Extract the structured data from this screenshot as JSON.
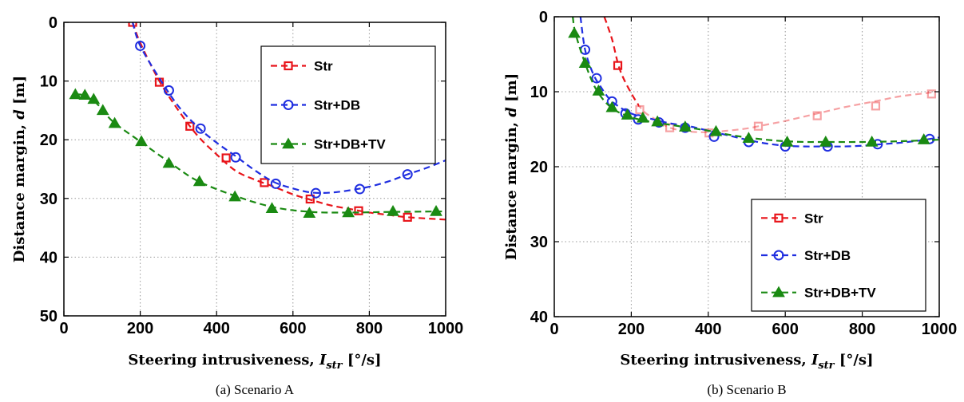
{
  "colors": {
    "Str": "#e8141a",
    "Str+DB": "#1f2ee0",
    "Str+DB+TV": "#1a8a12",
    "grid": "#9a9a9a"
  },
  "chart_data": [
    {
      "type": "line",
      "caption": "(a) Scenario A",
      "xlabel_main": "Steering intrusiveness, ",
      "xlabel_sym": "I",
      "xlabel_sub": "str",
      "xlabel_unit": " [°/s]",
      "ylabel_main": "Distance margin, ",
      "ylabel_sym": "d",
      "ylabel_unit": " [m]",
      "xlim": [
        0,
        1000
      ],
      "ylim": [
        0,
        50
      ],
      "y_inverted": true,
      "xticks": [
        0,
        200,
        400,
        600,
        800,
        1000
      ],
      "yticks": [
        0,
        10,
        20,
        30,
        40,
        50
      ],
      "grid": true,
      "legend_position": "top-right",
      "series": [
        {
          "name": "Str",
          "marker": "square",
          "dash": true,
          "curve": [
            [
              180,
              0
            ],
            [
              200,
              3.5
            ],
            [
              250,
              10
            ],
            [
              300,
              15
            ],
            [
              350,
              19.3
            ],
            [
              400,
              22.5
            ],
            [
              450,
              25.3
            ],
            [
              500,
              26.8
            ],
            [
              550,
              28
            ],
            [
              600,
              29.3
            ],
            [
              650,
              30.3
            ],
            [
              700,
              31.2
            ],
            [
              750,
              31.8
            ],
            [
              800,
              32.4
            ],
            [
              850,
              32.8
            ],
            [
              900,
              33.2
            ],
            [
              1000,
              33.6
            ]
          ],
          "markers": [
            [
              180,
              0
            ],
            [
              250,
              10.2
            ],
            [
              330,
              17.7
            ],
            [
              425,
              23.1
            ],
            [
              525,
              27.3
            ],
            [
              645,
              30.1
            ],
            [
              772,
              32.1
            ],
            [
              900,
              33.2
            ]
          ]
        },
        {
          "name": "Str+DB",
          "marker": "circle",
          "dash": true,
          "curve": [
            [
              180,
              0
            ],
            [
              200,
              4
            ],
            [
              250,
              9.5
            ],
            [
              300,
              14.3
            ],
            [
              350,
              17.8
            ],
            [
              400,
              20.5
            ],
            [
              450,
              22.8
            ],
            [
              500,
              25.2
            ],
            [
              550,
              27.2
            ],
            [
              600,
              28.3
            ],
            [
              650,
              29
            ],
            [
              700,
              29
            ],
            [
              750,
              28.6
            ],
            [
              800,
              28
            ],
            [
              850,
              27.1
            ],
            [
              900,
              25.9
            ],
            [
              950,
              24.8
            ],
            [
              1000,
              23.5
            ]
          ],
          "markers": [
            [
              200,
              4
            ],
            [
              275,
              11.6
            ],
            [
              358,
              18.1
            ],
            [
              450,
              23
            ],
            [
              555,
              27.5
            ],
            [
              660,
              29.1
            ],
            [
              775,
              28.4
            ],
            [
              900,
              25.9
            ]
          ]
        },
        {
          "name": "Str+DB+TV",
          "marker": "triangle",
          "dash": true,
          "curve": [
            [
              30,
              12.3
            ],
            [
              50,
              12.4
            ],
            [
              80,
              13.5
            ],
            [
              100,
              14.8
            ],
            [
              130,
              17
            ],
            [
              200,
              20.3
            ],
            [
              280,
              24
            ],
            [
              350,
              27
            ],
            [
              450,
              29.6
            ],
            [
              550,
              31.5
            ],
            [
              650,
              32.3
            ],
            [
              750,
              32.4
            ],
            [
              850,
              32.3
            ],
            [
              1000,
              32.2
            ]
          ],
          "markers": [
            [
              30,
              12.3
            ],
            [
              55,
              12.4
            ],
            [
              78,
              13.1
            ],
            [
              102,
              15
            ],
            [
              133,
              17.2
            ],
            [
              203,
              20.3
            ],
            [
              275,
              24
            ],
            [
              355,
              27.1
            ],
            [
              448,
              29.7
            ],
            [
              545,
              31.7
            ],
            [
              643,
              32.5
            ],
            [
              745,
              32.4
            ],
            [
              862,
              32.2
            ],
            [
              975,
              32.2
            ]
          ]
        }
      ]
    },
    {
      "type": "line",
      "caption": "(b) Scenario B",
      "xlabel_main": "Steering intrusiveness, ",
      "xlabel_sym": "I",
      "xlabel_sub": "str",
      "xlabel_unit": " [°/s]",
      "ylabel_main": "Distance margin, ",
      "ylabel_sym": "d",
      "ylabel_unit": " [m]",
      "xlim": [
        0,
        1000
      ],
      "ylim": [
        0,
        40
      ],
      "y_inverted": true,
      "xticks": [
        0,
        200,
        400,
        600,
        800,
        1000
      ],
      "yticks": [
        0,
        10,
        20,
        30,
        40
      ],
      "grid": true,
      "legend_position": "bottom-right",
      "series": [
        {
          "name": "Str",
          "marker": "square",
          "dash": true,
          "curve": [
            [
              130,
              0
            ],
            [
              150,
              3
            ],
            [
              170,
              7
            ],
            [
              200,
              10.2
            ],
            [
              230,
              12.5
            ],
            [
              260,
              13.6
            ],
            [
              300,
              14.8
            ],
            [
              350,
              15.3
            ],
            [
              400,
              15.4
            ],
            [
              450,
              15.2
            ],
            [
              500,
              14.9
            ],
            [
              550,
              14.4
            ],
            [
              600,
              13.9
            ],
            [
              650,
              13.3
            ],
            [
              700,
              12.7
            ],
            [
              750,
              12.1
            ],
            [
              800,
              11.6
            ],
            [
              850,
              11.1
            ],
            [
              900,
              10.6
            ],
            [
              980,
              10.1
            ]
          ],
          "faded_from_x": 220,
          "markers": [
            [
              165,
              6.5
            ],
            [
              222,
              12.4
            ],
            [
              300,
              14.8
            ],
            [
              402,
              15.5
            ],
            [
              530,
              14.6
            ],
            [
              683,
              13.2
            ],
            [
              835,
              11.9
            ],
            [
              980,
              10.3
            ]
          ]
        },
        {
          "name": "Str+DB",
          "marker": "circle",
          "dash": true,
          "curve": [
            [
              68,
              0
            ],
            [
              80,
              4.4
            ],
            [
              100,
              7.5
            ],
            [
              120,
              9.3
            ],
            [
              150,
              11.3
            ],
            [
              200,
              12.9
            ],
            [
              250,
              13.6
            ],
            [
              300,
              14.2
            ],
            [
              350,
              14.6
            ],
            [
              400,
              15.2
            ],
            [
              450,
              15.8
            ],
            [
              500,
              16.4
            ],
            [
              550,
              16.9
            ],
            [
              600,
              17.2
            ],
            [
              650,
              17.3
            ],
            [
              700,
              17.3
            ],
            [
              750,
              17.3
            ],
            [
              800,
              17.2
            ],
            [
              850,
              17
            ],
            [
              900,
              16.8
            ],
            [
              950,
              16.5
            ],
            [
              1000,
              16.1
            ]
          ],
          "markers": [
            [
              80,
              4.4
            ],
            [
              110,
              8.2
            ],
            [
              150,
              11.3
            ],
            [
              185,
              12.9
            ],
            [
              218,
              13.7
            ],
            [
              272,
              14.1
            ],
            [
              340,
              14.8
            ],
            [
              415,
              16
            ],
            [
              505,
              16.7
            ],
            [
              600,
              17.3
            ],
            [
              710,
              17.3
            ],
            [
              840,
              17
            ],
            [
              975,
              16.3
            ]
          ]
        },
        {
          "name": "Str+DB+TV",
          "marker": "triangle",
          "dash": true,
          "curve": [
            [
              48,
              0
            ],
            [
              55,
              2.2
            ],
            [
              80,
              6.2
            ],
            [
              110,
              9.8
            ],
            [
              150,
              12.2
            ],
            [
              200,
              13.4
            ],
            [
              250,
              14
            ],
            [
              300,
              14.4
            ],
            [
              350,
              14.8
            ],
            [
              400,
              15.2
            ],
            [
              450,
              15.7
            ],
            [
              500,
              16.1
            ],
            [
              550,
              16.4
            ],
            [
              600,
              16.6
            ],
            [
              650,
              16.7
            ],
            [
              700,
              16.7
            ],
            [
              800,
              16.7
            ],
            [
              900,
              16.6
            ],
            [
              1000,
              16.4
            ]
          ],
          "markers": [
            [
              52,
              2.2
            ],
            [
              80,
              6.2
            ],
            [
              115,
              9.9
            ],
            [
              150,
              12.1
            ],
            [
              190,
              13.1
            ],
            [
              230,
              13.5
            ],
            [
              268,
              14
            ],
            [
              340,
              14.7
            ],
            [
              420,
              15.3
            ],
            [
              505,
              16.2
            ],
            [
              605,
              16.7
            ],
            [
              705,
              16.7
            ],
            [
              825,
              16.7
            ],
            [
              960,
              16.4
            ]
          ]
        }
      ]
    }
  ]
}
